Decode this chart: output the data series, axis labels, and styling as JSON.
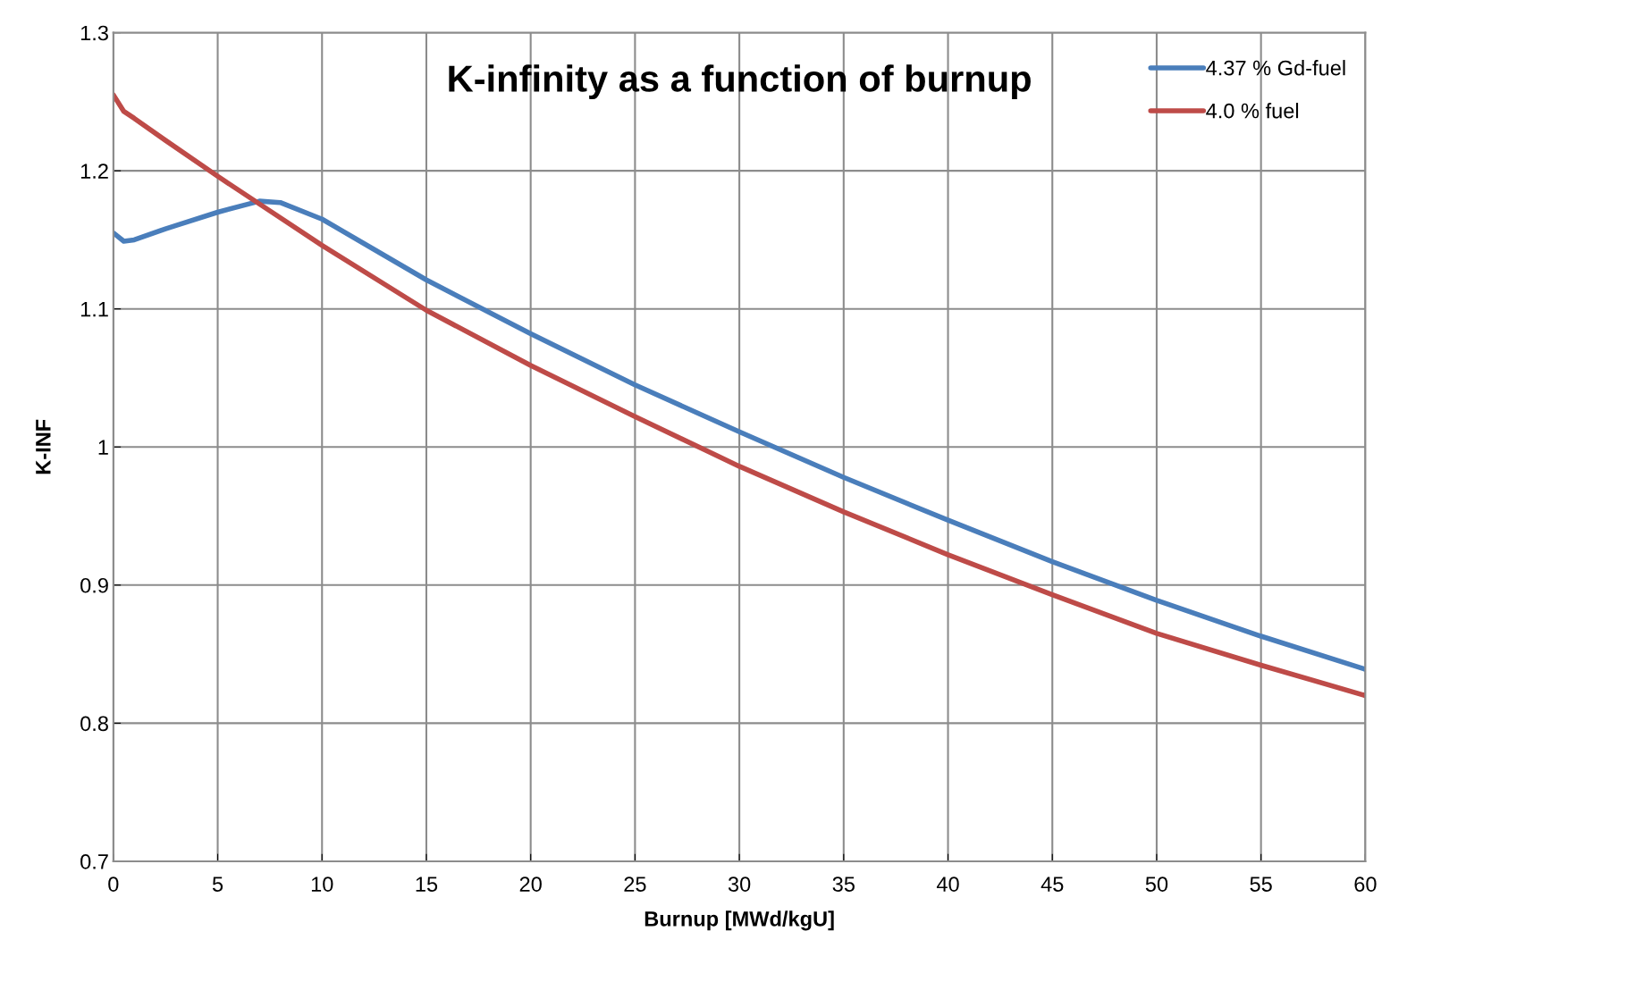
{
  "chart_data": {
    "type": "line",
    "title": "K-infinity as a function of burnup",
    "xlabel": "Burnup [MWd/kgU]",
    "ylabel": "K-INF",
    "xlim": [
      0,
      60
    ],
    "xticks": [
      0,
      5,
      10,
      15,
      20,
      25,
      30,
      35,
      40,
      45,
      50,
      55,
      60
    ],
    "ylim": [
      0.7,
      1.3
    ],
    "yticks": [
      0.7,
      0.8,
      0.9,
      1,
      1.1,
      1.2,
      1.3
    ],
    "grid": true,
    "legend": "top right",
    "marker": "none",
    "line_style": "solid",
    "series": [
      {
        "name": "4.37 % Gd-fuel",
        "color": "#4a7ebb",
        "x": [
          0,
          0.5,
          1,
          2.5,
          5,
          7,
          8,
          10,
          12.5,
          15,
          20,
          25,
          30,
          35,
          40,
          45,
          50,
          55,
          60
        ],
        "values": [
          1.155,
          1.149,
          1.15,
          1.158,
          1.17,
          1.178,
          1.177,
          1.165,
          1.143,
          1.121,
          1.082,
          1.045,
          1.011,
          0.978,
          0.947,
          0.917,
          0.889,
          0.863,
          0.839
        ]
      },
      {
        "name": "4.0 % fuel",
        "color": "#be4b48",
        "x": [
          0,
          0.5,
          1,
          2.5,
          5,
          7,
          10,
          15,
          20,
          25,
          30,
          35,
          40,
          45,
          50,
          55,
          60
        ],
        "values": [
          1.255,
          1.243,
          1.238,
          1.222,
          1.196,
          1.176,
          1.146,
          1.099,
          1.059,
          1.022,
          0.986,
          0.953,
          0.922,
          0.893,
          0.865,
          0.842,
          0.82
        ]
      }
    ]
  }
}
